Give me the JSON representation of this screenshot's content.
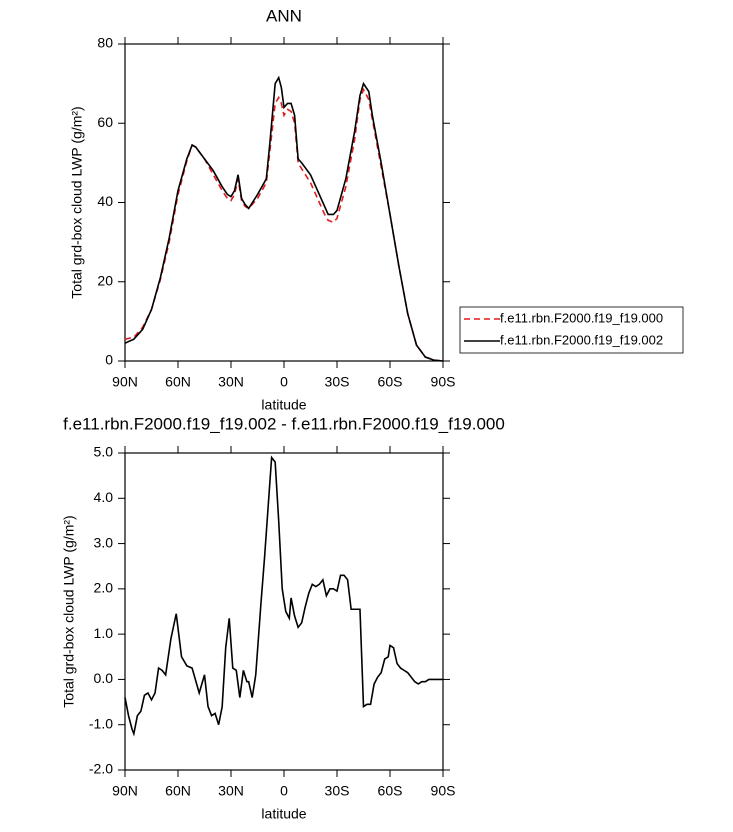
{
  "chart_data": [
    {
      "type": "line",
      "title": "ANN",
      "xlabel": "latitude",
      "ylabel": "Total grd-box cloud LWP (g/m²)",
      "x": [
        90,
        85,
        80,
        75,
        70,
        65,
        60,
        55,
        52,
        50,
        45,
        40,
        35,
        32,
        30,
        28,
        26,
        24,
        22,
        20,
        15,
        10,
        8,
        5,
        3,
        1.5,
        0,
        -2,
        -4,
        -6,
        -8,
        -10,
        -15,
        -20,
        -23,
        -25,
        -28,
        -30,
        -35,
        -40,
        -43,
        -45,
        -48,
        -50,
        -55,
        -60,
        -65,
        -70,
        -75,
        -80,
        -85,
        -90
      ],
      "series": [
        {
          "name": "f.e11.rbn.F2000.f19_f19.000",
          "color": "#e41a1c",
          "dashed": true,
          "values": [
            5.5,
            6,
            8.5,
            13,
            20.5,
            30,
            42,
            50.5,
            54.5,
            54,
            51,
            47,
            43,
            41,
            40.5,
            42,
            46,
            40.5,
            39,
            38.5,
            41,
            45,
            53,
            65,
            66.5,
            65,
            62,
            63.5,
            63,
            60,
            50,
            48.5,
            45,
            40,
            37,
            35.5,
            35,
            36,
            44,
            56,
            66,
            68.5,
            66,
            61,
            49,
            37,
            24,
            12,
            4,
            1,
            0.2,
            0
          ]
        },
        {
          "name": "f.e11.rbn.F2000.f19_f19.002",
          "color": "#000000",
          "dashed": false,
          "values": [
            4.5,
            5.5,
            8,
            13,
            21,
            31,
            43,
            51,
            54.5,
            54,
            51,
            48,
            44,
            42,
            41.5,
            43,
            47,
            41,
            39.5,
            38.5,
            42,
            46,
            55,
            70,
            71.5,
            69,
            64,
            65,
            65,
            62,
            51,
            50,
            47,
            42,
            39,
            37,
            37,
            38,
            46,
            58,
            67,
            70,
            68,
            62,
            50,
            37,
            24,
            12,
            4,
            1,
            0.2,
            0
          ]
        }
      ],
      "xlim": [
        90,
        -90
      ],
      "xticks": [
        {
          "value": 90,
          "label": "90N"
        },
        {
          "value": 60,
          "label": "60N"
        },
        {
          "value": 30,
          "label": "30N"
        },
        0,
        {
          "value": -30,
          "label": "30S"
        },
        {
          "value": -60,
          "label": "60S"
        },
        {
          "value": -90,
          "label": "90S"
        }
      ],
      "ylim": [
        0,
        80
      ],
      "yticks": [
        0,
        20,
        40,
        60,
        80
      ],
      "legend": "right"
    },
    {
      "type": "line",
      "title": "f.e11.rbn.F2000.f19_f19.002 - f.e11.rbn.F2000.f19_f19.000",
      "xlabel": "latitude",
      "ylabel": "Total grd-box cloud LWP (g/m²)",
      "x": [
        90,
        88,
        86,
        85,
        83,
        81,
        79,
        77,
        75,
        73,
        71,
        69,
        67,
        64,
        61,
        58,
        55,
        52,
        48,
        45,
        43,
        41,
        39,
        37,
        35,
        33,
        31,
        29,
        27,
        25,
        23,
        21,
        20,
        18,
        16,
        13,
        11,
        9,
        7,
        5,
        3,
        1,
        -1,
        -3,
        -4,
        -6,
        -8,
        -10,
        -12,
        -14,
        -16,
        -18,
        -20,
        -22,
        -24,
        -26,
        -28,
        -30,
        -32,
        -34,
        -36,
        -38,
        -40,
        -43,
        -45,
        -47,
        -49,
        -51,
        -53,
        -55,
        -57,
        -59,
        -60,
        -62,
        -64,
        -66,
        -68,
        -70,
        -72,
        -74,
        -76,
        -78,
        -80,
        -82,
        -85,
        -90
      ],
      "values": [
        -0.4,
        -0.8,
        -1.1,
        -1.2,
        -0.8,
        -0.7,
        -0.35,
        -0.3,
        -0.45,
        -0.3,
        0.25,
        0.2,
        0.1,
        0.9,
        1.45,
        0.5,
        0.3,
        0.25,
        -0.3,
        0.1,
        -0.6,
        -0.8,
        -0.75,
        -1.0,
        -0.6,
        0.7,
        1.35,
        0.25,
        0.2,
        -0.4,
        0.2,
        -0.05,
        -0.05,
        -0.4,
        0.1,
        1.7,
        2.7,
        3.8,
        4.9,
        4.8,
        3.5,
        2.0,
        1.5,
        1.35,
        1.8,
        1.4,
        1.15,
        1.25,
        1.6,
        1.9,
        2.1,
        2.05,
        2.1,
        2.2,
        1.85,
        2.0,
        2.0,
        1.95,
        2.3,
        2.3,
        2.2,
        1.55,
        1.55,
        1.55,
        -0.6,
        -0.55,
        -0.55,
        -0.1,
        0.05,
        0.15,
        0.45,
        0.5,
        0.75,
        0.7,
        0.35,
        0.25,
        0.2,
        0.15,
        0.05,
        -0.05,
        -0.1,
        -0.05,
        -0.05,
        0,
        0,
        0
      ],
      "color": "#000000",
      "xlim": [
        90,
        -90
      ],
      "xticks": [
        {
          "value": 90,
          "label": "90N"
        },
        {
          "value": 60,
          "label": "60N"
        },
        {
          "value": 30,
          "label": "30N"
        },
        0,
        {
          "value": -30,
          "label": "30S"
        },
        {
          "value": -60,
          "label": "60S"
        },
        {
          "value": -90,
          "label": "90S"
        }
      ],
      "ylim": [
        -2,
        5
      ],
      "yticks": [
        {
          "value": -2,
          "label": "-2.0"
        },
        {
          "value": -1,
          "label": "-1.0"
        },
        {
          "value": 0,
          "label": "0.0"
        },
        {
          "value": 1,
          "label": "1.0"
        },
        {
          "value": 2,
          "label": "2.0"
        },
        {
          "value": 3,
          "label": "3.0"
        },
        {
          "value": 4,
          "label": "4.0"
        },
        {
          "value": 5,
          "label": "5.0"
        }
      ]
    }
  ]
}
